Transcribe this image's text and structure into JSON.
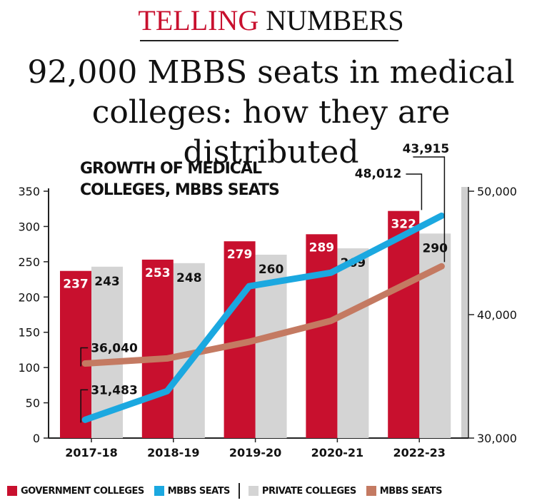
{
  "header": {
    "brand_word1": "TELLING",
    "brand_word2": "NUMBERS",
    "headline_line1": "92,000 MBBS seats in medical",
    "headline_line2": "colleges: how they are distributed"
  },
  "colors": {
    "government": "#c8102e",
    "private": "#d4d4d4",
    "mbbs_blue": "#1ba8e0",
    "mbbs_brown": "#c47a62"
  },
  "chart_data": {
    "type": "bar",
    "title_line1": "GROWTH OF MEDICAL",
    "title_line2": "COLLEGES, MBBS SEATS",
    "categories": [
      "2017-18",
      "2018-19",
      "2019-20",
      "2020-21",
      "2022-23"
    ],
    "series": [
      {
        "name": "GOVERNMENT COLLEGES",
        "axis": "left",
        "kind": "bar",
        "color": "#c8102e",
        "values": [
          237,
          253,
          279,
          289,
          322
        ]
      },
      {
        "name": "PRIVATE COLLEGES",
        "axis": "left",
        "kind": "bar",
        "color": "#d4d4d4",
        "values": [
          243,
          248,
          260,
          269,
          290
        ]
      },
      {
        "name": "MBBS SEATS",
        "axis": "right",
        "kind": "line",
        "color": "#1ba8e0",
        "values": [
          31483,
          33800,
          42300,
          43400,
          48012
        ]
      },
      {
        "name": "MBBS SEATS",
        "axis": "right",
        "kind": "line",
        "color": "#c47a62",
        "values": [
          36040,
          36450,
          37800,
          39500,
          43915
        ]
      }
    ],
    "annotations": {
      "brown_start": "36,040",
      "blue_start": "31,483",
      "blue_end": "48,012",
      "brown_end": "43,915"
    },
    "left_axis": {
      "ylim": [
        0,
        350
      ],
      "ticks": [
        0,
        50,
        100,
        150,
        200,
        250,
        300,
        350
      ]
    },
    "right_axis": {
      "ylim": [
        30000,
        50000
      ],
      "ticks": [
        30000,
        40000,
        50000
      ],
      "tick_labels": [
        "30,000",
        "40,000",
        "50,000"
      ]
    },
    "legend": {
      "government": "GOVERNMENT COLLEGES",
      "mbbs_blue": "MBBS SEATS",
      "private": "PRIVATE COLLEGES",
      "mbbs_brown": "MBBS SEATS"
    }
  }
}
